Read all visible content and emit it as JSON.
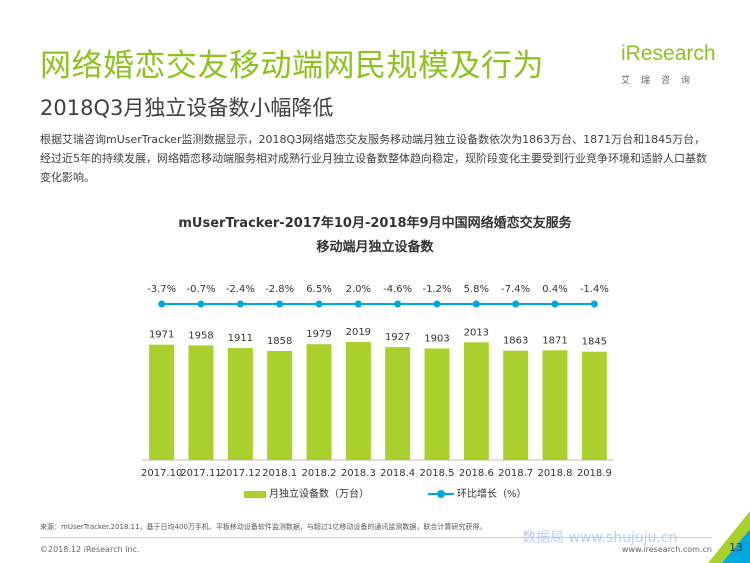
{
  "header": {
    "title": "网络婚恋交友移动端网民规模及行为",
    "subtitle": "2018Q3月独立设备数小幅降低"
  },
  "logo": {
    "brand": "iResearch",
    "brand_cn": "艾瑞咨询"
  },
  "body": {
    "text": "根据艾瑞咨询mUserTracker监测数据显示，2018Q3网络婚恋交友服务移动端月独立设备数依次为1863万台、1871万台和1845万台，经过近5年的持续发展，网络婚恋移动端服务相对成熟行业月独立设备数整体趋向稳定，现阶段变化主要受到行业竞争环境和适龄人口基数变化影响。"
  },
  "chart_data": {
    "type": "bar",
    "title_line1": "mUserTracker-2017年10月-2018年9月中国网络婚恋交友服务",
    "title_line2": "移动端月独立设备数",
    "categories": [
      "2017.10",
      "2017.11",
      "2017.12",
      "2018.1",
      "2018.2",
      "2018.3",
      "2018.4",
      "2018.5",
      "2018.6",
      "2018.7",
      "2018.8",
      "2018.9"
    ],
    "series": [
      {
        "name": "月独立设备数（万台）",
        "type": "bar",
        "color": "#a9d02c",
        "values": [
          1971,
          1958,
          1911,
          1858,
          1979,
          2019,
          1927,
          1903,
          2013,
          1863,
          1871,
          1845
        ]
      },
      {
        "name": "环比增长（%）",
        "type": "line",
        "color": "#00a8e0",
        "values": [
          -3.7,
          -0.7,
          -2.4,
          -2.8,
          6.5,
          2.0,
          -4.6,
          -1.2,
          5.8,
          -7.4,
          0.4,
          -1.4
        ],
        "labels": [
          "-3.7%",
          "-0.7%",
          "-2.4%",
          "-2.8%",
          "6.5%",
          "2.0%",
          "-4.6%",
          "-1.2%",
          "5.8%",
          "-7.4%",
          "0.4%",
          "-1.4%"
        ]
      }
    ],
    "value_labels": [
      "1971",
      "1958",
      "1911",
      "1858",
      "1979",
      "2019",
      "1927",
      "1903",
      "2013",
      "1863",
      "1871",
      "1845"
    ],
    "legend": "bottom",
    "grid": false
  },
  "footer": {
    "source": "来源：mUserTracker.2018.11，基于日均400万手机、平板移动设备软件监测数据，与超过1亿移动设备的通讯监测数据，联合计算研究获得。",
    "copyright": "©2018.12 iResearch Inc.",
    "site": "www.iresearch.com.cn",
    "page": "13",
    "watermark": "数据局 www.shujuju.cn"
  }
}
